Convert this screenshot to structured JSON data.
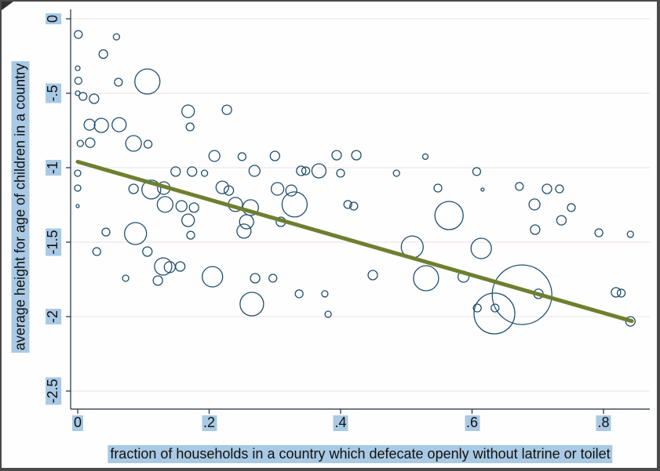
{
  "page": {
    "background": "#fefefe",
    "border_color": "#4a4a4a"
  },
  "chart_data": {
    "type": "scatter",
    "title": "",
    "xlabel": "fraction of households in a country which defecate openly without latrine or toilet",
    "ylabel": "average height for age of children in a country",
    "xlim": [
      -0.02,
      0.87
    ],
    "ylim": [
      -2.62,
      0.06
    ],
    "grid": "horizontal",
    "x_ticks": [
      0,
      0.2,
      0.4,
      0.6,
      0.8
    ],
    "x_tick_labels": [
      "0",
      ".2",
      ".4",
      ".6",
      ".8"
    ],
    "y_ticks": [
      0,
      -0.5,
      -1,
      -1.5,
      -2,
      -2.5
    ],
    "y_tick_labels": [
      "0",
      "-.5",
      "-1",
      "-1.5",
      "-2",
      "-2.5"
    ],
    "marker_color": "#1f4e6e",
    "axis_color": "#1f2d3d",
    "grid_color": "#ecdde6",
    "highlight_color": "#a9c9e4",
    "trend_line": {
      "x1": 0,
      "y1": -0.96,
      "x2": 0.843,
      "y2": -2.03,
      "color": "#6e7f2f",
      "width": 5
    },
    "bubbles": [
      [
        0.001,
        -0.105,
        5
      ],
      [
        0.059,
        -0.121,
        4
      ],
      [
        0.039,
        -0.237,
        5.5
      ],
      [
        0.0,
        -0.332,
        3
      ],
      [
        0.001,
        -0.416,
        4.5
      ],
      [
        0.062,
        -0.426,
        5
      ],
      [
        0.106,
        -0.421,
        16
      ],
      [
        0.008,
        -0.521,
        5
      ],
      [
        0.025,
        -0.537,
        6
      ],
      [
        0.0,
        -0.5,
        3
      ],
      [
        0.168,
        -0.621,
        8
      ],
      [
        0.227,
        -0.611,
        6
      ],
      [
        0.018,
        -0.711,
        7
      ],
      [
        0.036,
        -0.716,
        9
      ],
      [
        0.063,
        -0.711,
        9
      ],
      [
        0.171,
        -0.726,
        5
      ],
      [
        0.004,
        -0.837,
        4
      ],
      [
        0.019,
        -0.832,
        6
      ],
      [
        0.085,
        -0.837,
        10
      ],
      [
        0.107,
        -0.842,
        5
      ],
      [
        0.208,
        -0.921,
        7
      ],
      [
        0.25,
        -0.926,
        5
      ],
      [
        0.3,
        -0.921,
        6
      ],
      [
        0.394,
        -0.916,
        6
      ],
      [
        0.424,
        -0.916,
        6
      ],
      [
        0.529,
        -0.926,
        3.5
      ],
      [
        0.0,
        -1.037,
        4
      ],
      [
        0.149,
        -1.026,
        6
      ],
      [
        0.174,
        -1.026,
        6
      ],
      [
        0.193,
        -1.037,
        4
      ],
      [
        0.269,
        -1.021,
        7
      ],
      [
        0.34,
        -1.021,
        6
      ],
      [
        0.347,
        -1.021,
        5
      ],
      [
        0.367,
        -1.021,
        9
      ],
      [
        0.4,
        -1.037,
        5
      ],
      [
        0.485,
        -1.037,
        4
      ],
      [
        0.607,
        -1.026,
        5
      ],
      [
        0.0,
        -1.137,
        4
      ],
      [
        0.085,
        -1.142,
        6
      ],
      [
        0.112,
        -1.147,
        12
      ],
      [
        0.131,
        -1.137,
        8
      ],
      [
        0.22,
        -1.132,
        8
      ],
      [
        0.23,
        -1.153,
        6
      ],
      [
        0.304,
        -1.142,
        8
      ],
      [
        0.325,
        -1.153,
        7
      ],
      [
        0.548,
        -1.137,
        5
      ],
      [
        0.616,
        -1.147,
        2
      ],
      [
        0.672,
        -1.126,
        5
      ],
      [
        0.714,
        -1.142,
        6
      ],
      [
        0.733,
        -1.142,
        5
      ],
      [
        0.0,
        -1.258,
        2
      ],
      [
        0.133,
        -1.247,
        10
      ],
      [
        0.158,
        -1.258,
        7
      ],
      [
        0.177,
        -1.268,
        6
      ],
      [
        0.24,
        -1.247,
        9
      ],
      [
        0.263,
        -1.268,
        10
      ],
      [
        0.33,
        -1.247,
        16
      ],
      [
        0.411,
        -1.247,
        5
      ],
      [
        0.42,
        -1.258,
        5
      ],
      [
        0.695,
        -1.247,
        7
      ],
      [
        0.751,
        -1.268,
        5
      ],
      [
        0.565,
        -1.321,
        18
      ],
      [
        0.168,
        -1.353,
        8
      ],
      [
        0.257,
        -1.363,
        9
      ],
      [
        0.309,
        -1.363,
        6
      ],
      [
        0.736,
        -1.353,
        6
      ],
      [
        0.043,
        -1.432,
        5
      ],
      [
        0.088,
        -1.442,
        14
      ],
      [
        0.172,
        -1.453,
        5
      ],
      [
        0.253,
        -1.426,
        9
      ],
      [
        0.696,
        -1.416,
        6
      ],
      [
        0.793,
        -1.437,
        5
      ],
      [
        0.841,
        -1.447,
        4
      ],
      [
        0.509,
        -1.532,
        14
      ],
      [
        0.614,
        -1.542,
        13
      ],
      [
        0.029,
        -1.563,
        5
      ],
      [
        0.106,
        -1.563,
        6
      ],
      [
        0.13,
        -1.663,
        11
      ],
      [
        0.14,
        -1.668,
        7
      ],
      [
        0.156,
        -1.663,
        6
      ],
      [
        0.073,
        -1.742,
        4
      ],
      [
        0.122,
        -1.758,
        6
      ],
      [
        0.205,
        -1.732,
        13
      ],
      [
        0.27,
        -1.742,
        6
      ],
      [
        0.297,
        -1.742,
        5
      ],
      [
        0.449,
        -1.721,
        6
      ],
      [
        0.53,
        -1.742,
        16
      ],
      [
        0.587,
        -1.732,
        7
      ],
      [
        0.265,
        -1.916,
        15
      ],
      [
        0.337,
        -1.847,
        5
      ],
      [
        0.376,
        -1.847,
        4
      ],
      [
        0.676,
        -1.853,
        38
      ],
      [
        0.634,
        -1.979,
        26
      ],
      [
        0.608,
        -1.942,
        5
      ],
      [
        0.635,
        -1.942,
        5
      ],
      [
        0.701,
        -1.847,
        6
      ],
      [
        0.819,
        -1.837,
        6
      ],
      [
        0.827,
        -1.842,
        5
      ],
      [
        0.841,
        -2.032,
        6
      ],
      [
        0.381,
        -1.984,
        4
      ]
    ]
  }
}
